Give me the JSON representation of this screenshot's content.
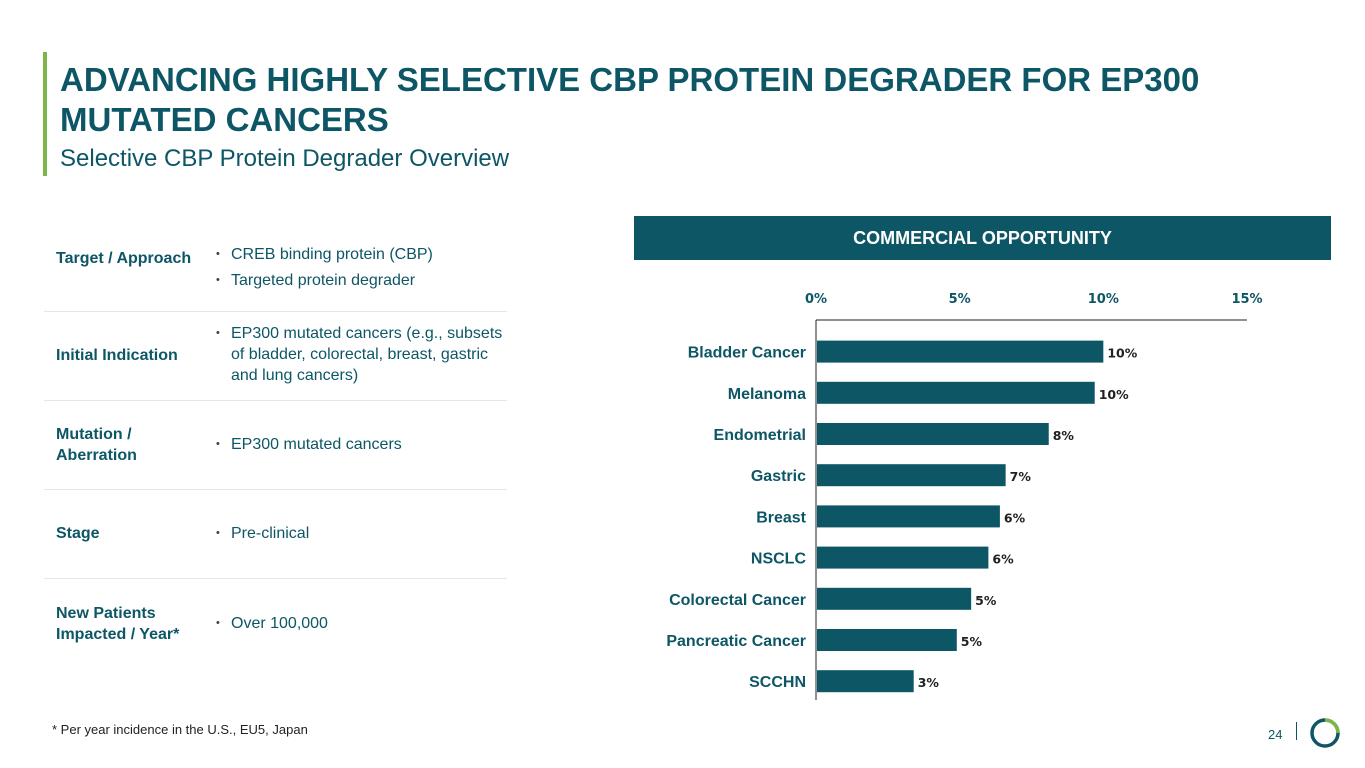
{
  "header": {
    "title": "ADVANCING HIGHLY SELECTIVE CBP PROTEIN DEGRADER FOR EP300 MUTATED CANCERS",
    "subtitle": "Selective CBP Protein Degrader Overview"
  },
  "overview": {
    "rows": [
      {
        "label": "Target / Approach",
        "bullets": [
          "CREB binding protein (CBP)",
          "Targeted protein degrader"
        ]
      },
      {
        "label": "Initial Indication",
        "bullets": [
          "EP300 mutated cancers (e.g., subsets of bladder, colorectal, breast, gastric and lung cancers)"
        ]
      },
      {
        "label": "Mutation / Aberration",
        "bullets": [
          "EP300 mutated cancers"
        ]
      },
      {
        "label": "Stage",
        "bullets": [
          "Pre-clinical"
        ]
      },
      {
        "label": "New Patients Impacted / Year*",
        "bullets": [
          "Over 100,000"
        ]
      }
    ]
  },
  "chart_title": "COMMERCIAL OPPORTUNITY",
  "chart_data": {
    "type": "bar",
    "orientation": "horizontal",
    "categories": [
      "Bladder Cancer",
      "Melanoma",
      "Endometrial",
      "Gastric",
      "Breast",
      "NSCLC",
      "Colorectal Cancer",
      "Pancreatic Cancer",
      "SCCHN"
    ],
    "values": [
      10.0,
      9.7,
      8.1,
      6.6,
      6.4,
      6.0,
      5.4,
      4.9,
      3.4
    ],
    "data_labels": [
      "10%",
      "10%",
      "8%",
      "7%",
      "6%",
      "6%",
      "5%",
      "5%",
      "3%"
    ],
    "xlim": [
      0,
      15
    ],
    "xticks": [
      0,
      5,
      10,
      15
    ],
    "xtick_labels": [
      "0%",
      "5%",
      "10%",
      "15%"
    ],
    "axis_position": "top",
    "title": "COMMERCIAL OPPORTUNITY",
    "bar_color": "#0d5666"
  },
  "footer": {
    "footnote": "* Per year incidence in the U.S., EU5, Japan",
    "page_number": "24"
  },
  "colors": {
    "primary": "#0d5666",
    "accent": "#7ab648"
  }
}
